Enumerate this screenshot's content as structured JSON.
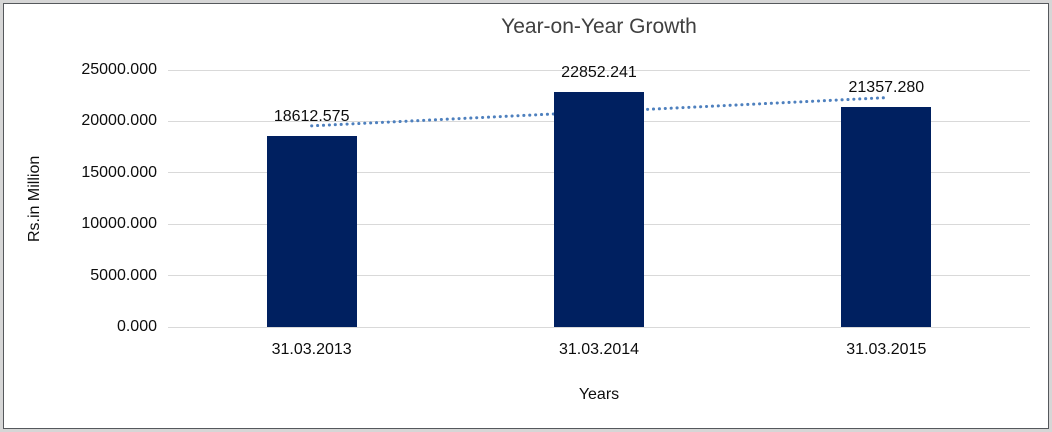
{
  "chart_data": {
    "type": "bar",
    "title": "Year-on-Year Growth",
    "categories": [
      "31.03.2013",
      "31.03.2014",
      "31.03.2015"
    ],
    "values": [
      18612.575,
      22852.241,
      21357.28
    ],
    "data_labels": [
      "18612.575",
      "22852.241",
      "21357.280"
    ],
    "xlabel": "Years",
    "ylabel": "Rs.in Million",
    "ylim": [
      0,
      25000
    ],
    "ytick_step": 5000,
    "ytick_labels": [
      "0.000",
      "5000.000",
      "10000.000",
      "15000.000",
      "20000.000",
      "25000.000"
    ],
    "grid": true,
    "legend": false,
    "trendline": {
      "type": "linear",
      "style": "dotted"
    }
  },
  "colors": {
    "bar": "#002060",
    "trendline": "#4E80BE",
    "gridline": "#D9D9D9",
    "title_text": "#404040",
    "axis_text": "#0D0D0D",
    "frame_border": "#55585C",
    "outer_margin": "#D6D6D6"
  }
}
